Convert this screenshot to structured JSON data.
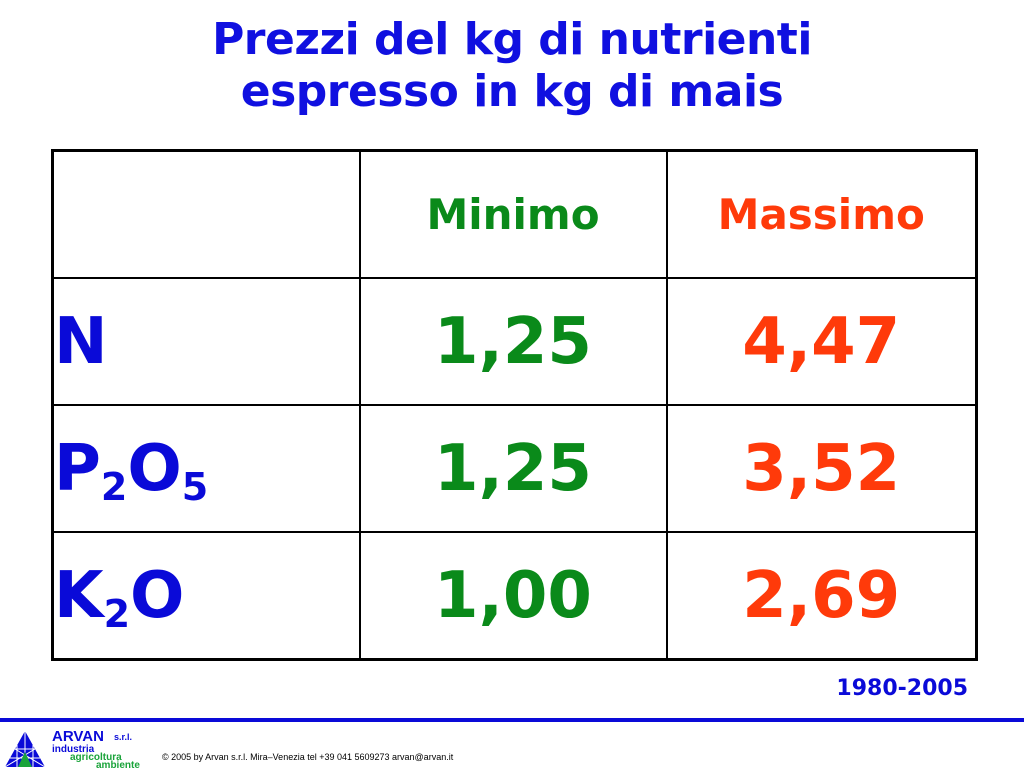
{
  "slide": {
    "title_line1": "Prezzi del kg di nutrienti",
    "title_line2": "espresso in kg di mais",
    "period": "1980-2005"
  },
  "table": {
    "headers": {
      "corner": "",
      "min": "Minimo",
      "max": "Massimo"
    },
    "rows": [
      {
        "base1": "N",
        "sub1": "",
        "base2": "",
        "sub2": "",
        "min": "1,25",
        "max": "4,47"
      },
      {
        "base1": "P",
        "sub1": "2",
        "base2": "O",
        "sub2": "5",
        "min": "1,25",
        "max": "3,52"
      },
      {
        "base1": "K",
        "sub1": "2",
        "base2": "O",
        "sub2": "",
        "min": "1,00",
        "max": "2,69"
      }
    ],
    "colors": {
      "min": "#0a8a1a",
      "max": "#ff3a0a",
      "label": "#0a0ad8",
      "title": "#1010e0"
    }
  },
  "footer": {
    "logo_name": "ARVAN",
    "logo_suffix": "s.r.l.",
    "logo_line1": "industria",
    "logo_line2": "agricoltura",
    "logo_line3": "ambiente",
    "logo_icon": "triangle-grid-logo-icon",
    "copyright": "© 2005 by Arvan s.r.l. Mira–Venezia tel +39 041 5609273 arvan@arvan.it"
  }
}
